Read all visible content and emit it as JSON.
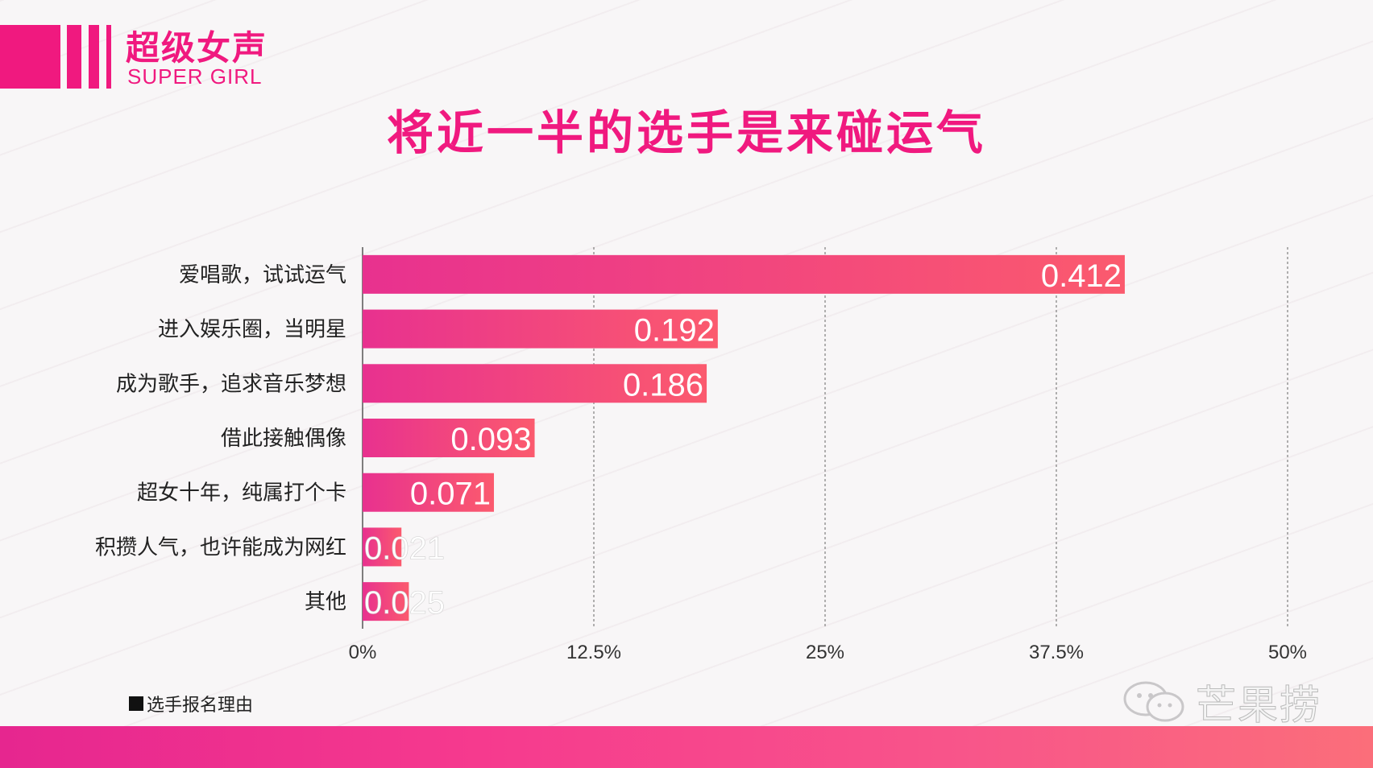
{
  "logo": {
    "cn": "超级女声",
    "en": "SUPER GIRL",
    "color": "#f0197f"
  },
  "title": "将近一半的选手是来碰运气",
  "legend": {
    "label": "选手报名理由"
  },
  "watermark": {
    "text": "芒果捞",
    "icon": "wechat-icon"
  },
  "chart_data": {
    "type": "bar",
    "orientation": "horizontal",
    "categories": [
      "爱唱歌，试试运气",
      "进入娱乐圈，当明星",
      "成为歌手，追求音乐梦想",
      "借此接触偶像",
      "超女十年，纯属打个卡",
      "积攒人气，也许能成为网红",
      "其他"
    ],
    "values": [
      0.412,
      0.192,
      0.186,
      0.093,
      0.071,
      0.021,
      0.025
    ],
    "value_labels": [
      "0.412",
      "0.192",
      "0.186",
      "0.093",
      "0.071",
      "0.021",
      "0.025"
    ],
    "xlim": [
      0,
      0.5
    ],
    "xticks": [
      0,
      0.125,
      0.25,
      0.375,
      0.5
    ],
    "xtick_labels": [
      "0%",
      "12.5%",
      "25%",
      "37.5%",
      "50%"
    ],
    "grid": "vertical-dashed",
    "legend_position": "bottom-left",
    "series": [
      {
        "name": "选手报名理由",
        "values": [
          0.412,
          0.192,
          0.186,
          0.093,
          0.071,
          0.021,
          0.025
        ]
      }
    ],
    "bar_gradient": [
      "#e8318f",
      "#fb5a6e"
    ]
  }
}
